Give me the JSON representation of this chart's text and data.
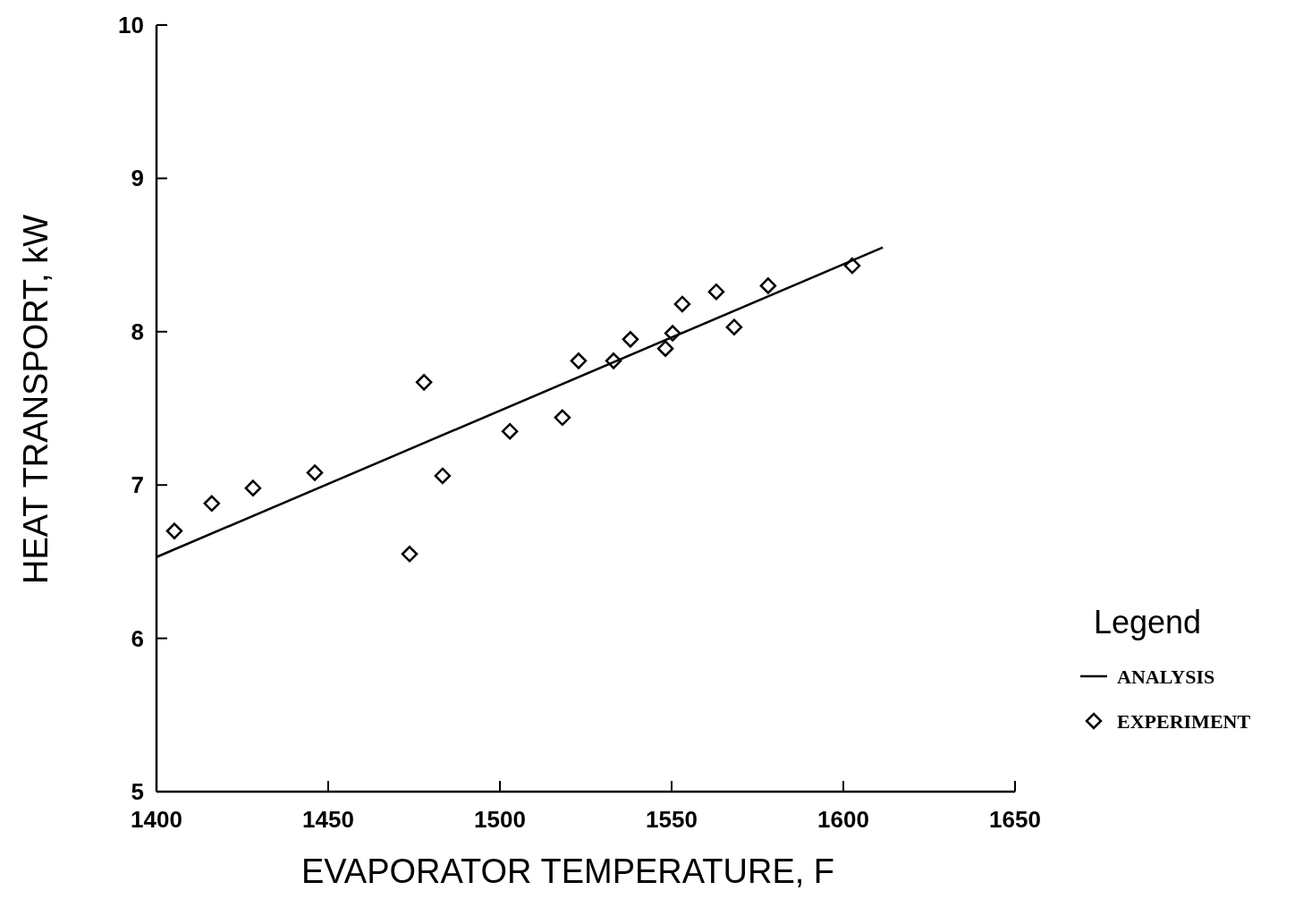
{
  "chart_data": {
    "type": "scatter",
    "xlabel": "EVAPORATOR TEMPERATURE, F",
    "ylabel": "HEAT TRANSPORT, kW",
    "legend_title": "Legend",
    "legend": "right",
    "xlim": [
      1400,
      1650
    ],
    "xticks": [
      1400,
      1450,
      1500,
      1550,
      1600,
      1650
    ],
    "ylim": [
      5,
      10
    ],
    "yticks": [
      5,
      6,
      7,
      8,
      9,
      10
    ],
    "grid": false,
    "series": [
      {
        "name": "ANALYSIS",
        "type": "line",
        "color": "#000000",
        "marker": "none",
        "line_style": "solid",
        "x": [
          1400,
          1611.5
        ],
        "values": [
          6.53,
          8.55
        ]
      },
      {
        "name": "EXPERIMENT",
        "color": "#000000",
        "marker": "diamond",
        "x": [
          1405.2,
          1416.1,
          1428.1,
          1446.1,
          1473.7,
          1477.9,
          1483.3,
          1502.9,
          1518.2,
          1522.9,
          1533.1,
          1538,
          1548.2,
          1550.3,
          1553.1,
          1563,
          1568.2,
          1578.1,
          1602.6
        ],
        "values": [
          6.7,
          6.88,
          6.98,
          7.08,
          6.55,
          7.67,
          7.06,
          7.35,
          7.44,
          7.81,
          7.81,
          7.95,
          7.89,
          7.99,
          8.18,
          8.26,
          8.03,
          8.3,
          8.43
        ]
      }
    ]
  }
}
